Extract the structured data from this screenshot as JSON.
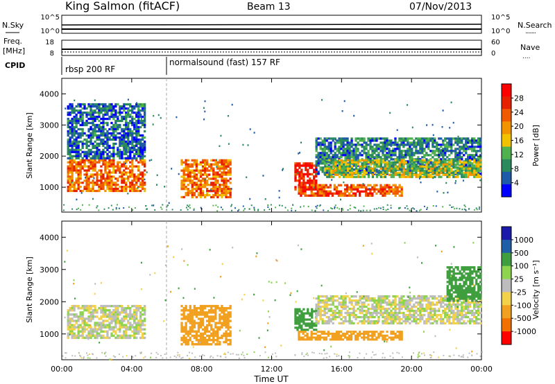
{
  "header": {
    "station": "King Salmon (fitACF)",
    "beam": "Beam 13",
    "date": "07/Nov/2013"
  },
  "noise_panel": {
    "left_label": "N.Sky",
    "left_ticks": [
      "10^5",
      "10^0"
    ],
    "right_ticks": [
      "10^5",
      "10^0"
    ],
    "right_label": "N.Search",
    "right_dots": "........"
  },
  "freq_panel": {
    "left_label_1": "Freq.",
    "left_label_2": "[MHz]",
    "left_ticks": [
      "18",
      "8"
    ],
    "right_ticks": [
      "60",
      "0"
    ],
    "right_label": "Nave",
    "right_dots": "...."
  },
  "cpid": {
    "label": "CPID",
    "modes": [
      {
        "name": "rbsp 200 RF",
        "start_hour": 0
      },
      {
        "name": "normalsound (fast) 157 RF",
        "start_hour": 6
      }
    ]
  },
  "colors": {
    "power": [
      "#0000ff",
      "#1e5aa8",
      "#2a8a5c",
      "#4fb24f",
      "#f2c100",
      "#f29300",
      "#f05a00",
      "#e62000",
      "#ff0000"
    ],
    "velocity": [
      "#1a1aaa",
      "#1f5fa8",
      "#3f9f3f",
      "#8fd44f",
      "#bdbdbd",
      "#f2d24a",
      "#f2a020",
      "#f07000",
      "#ff0000"
    ]
  },
  "chart_data": [
    {
      "type": "heatmap",
      "name": "power",
      "ylabel": "Slant Range [km]",
      "ylim": [
        200,
        4500
      ],
      "xlim": [
        0,
        24
      ],
      "yticks": [
        "4000",
        "3000",
        "2000",
        "1000"
      ],
      "colorbar": {
        "label": "Power [dB]",
        "ticks": [
          "28",
          "24",
          "20",
          "16",
          "12",
          "8",
          "4"
        ],
        "range": [
          0,
          32
        ]
      },
      "regions": [
        {
          "x": [
            0.3,
            4.8
          ],
          "y": [
            850,
            1900
          ],
          "value": 22
        },
        {
          "x": [
            0.3,
            4.8
          ],
          "y": [
            1900,
            3700
          ],
          "value": 6
        },
        {
          "x": [
            6.8,
            9.7
          ],
          "y": [
            650,
            1900
          ],
          "value": 22
        },
        {
          "x": [
            13.3,
            14.6
          ],
          "y": [
            900,
            1800
          ],
          "value": 28
        },
        {
          "x": [
            14.5,
            24
          ],
          "y": [
            1400,
            2600
          ],
          "value": 8
        },
        {
          "x": [
            15.0,
            24
          ],
          "y": [
            1300,
            1900
          ],
          "value": 14
        },
        {
          "x": [
            13.5,
            19.5
          ],
          "y": [
            700,
            1100
          ],
          "value": 24
        }
      ]
    },
    {
      "type": "heatmap",
      "name": "velocity",
      "ylabel": "Slant Range [km]",
      "ylim": [
        200,
        4500
      ],
      "xlim": [
        0,
        24
      ],
      "yticks": [
        "4000",
        "3000",
        "2000",
        "1000"
      ],
      "xticks": [
        "00:00",
        "04:00",
        "08:00",
        "12:00",
        "16:00",
        "20:00",
        "00:00"
      ],
      "xlabel": "Time UT",
      "colorbar": {
        "label": "Velocity [m s⁻¹]",
        "ticks": [
          "1000",
          "500",
          "100",
          "25",
          "-25",
          "-100",
          "-500",
          "-1000"
        ]
      },
      "regions": [
        {
          "x": [
            0.3,
            4.8
          ],
          "y": [
            850,
            1900
          ],
          "value": 0
        },
        {
          "x": [
            6.8,
            9.7
          ],
          "y": [
            650,
            1900
          ],
          "value": -300
        },
        {
          "x": [
            13.3,
            14.6
          ],
          "y": [
            1100,
            1800
          ],
          "value": 200
        },
        {
          "x": [
            14.5,
            24
          ],
          "y": [
            1300,
            2200
          ],
          "value": 0
        },
        {
          "x": [
            13.5,
            19.5
          ],
          "y": [
            800,
            1100
          ],
          "value": -200
        },
        {
          "x": [
            22,
            24
          ],
          "y": [
            2000,
            3100
          ],
          "value": 300
        }
      ]
    }
  ]
}
